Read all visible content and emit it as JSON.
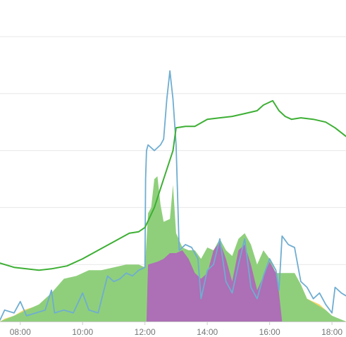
{
  "chart_data": {
    "type": "area",
    "title": "",
    "xlabel": "",
    "ylabel": "",
    "x_domain_hours": [
      7.35,
      18.45
    ],
    "y_domain": [
      0,
      100
    ],
    "grid": "horizontal",
    "legend": "none",
    "x_ticks": [
      {
        "hour": 8,
        "label": "08:00"
      },
      {
        "hour": 10,
        "label": "10:00"
      },
      {
        "hour": 12,
        "label": "12:00"
      },
      {
        "hour": 14,
        "label": "14:00"
      },
      {
        "hour": 16,
        "label": "16:00"
      },
      {
        "hour": 18,
        "label": "18:00"
      }
    ],
    "y_gridlines": [
      20,
      40,
      60,
      80,
      100
    ],
    "colors": {
      "yellow": "#f9d564",
      "green": "#8fcf7c",
      "purple": "#ad6fb5",
      "blue": "#6fadd1",
      "green_line": "#3daf34",
      "grid": "#e7e7e7",
      "axis": "#cccccc"
    },
    "series": [
      {
        "kind": "area",
        "color_key": "yellow",
        "points": [
          [
            7.35,
            0
          ],
          [
            7.5,
            1
          ],
          [
            7.8,
            2
          ],
          [
            8.1,
            4
          ],
          [
            8.4,
            5
          ],
          [
            8.8,
            6
          ],
          [
            9.2,
            7
          ],
          [
            9.6,
            8.5
          ],
          [
            10.0,
            11
          ],
          [
            10.4,
            13
          ],
          [
            10.8,
            15
          ],
          [
            11.2,
            16
          ],
          [
            11.5,
            17
          ],
          [
            11.8,
            18
          ],
          [
            12.0,
            17
          ],
          [
            12.1,
            0
          ],
          [
            13.0,
            0
          ],
          [
            13.1,
            16
          ],
          [
            13.4,
            17
          ],
          [
            13.6,
            14
          ],
          [
            13.8,
            7
          ],
          [
            13.9,
            2
          ],
          [
            14.0,
            8
          ],
          [
            14.2,
            4
          ],
          [
            14.4,
            3
          ],
          [
            14.6,
            7
          ],
          [
            14.8,
            3
          ],
          [
            15.0,
            6
          ],
          [
            15.2,
            5
          ],
          [
            15.4,
            13
          ],
          [
            15.6,
            6
          ],
          [
            15.8,
            10
          ],
          [
            16.0,
            9
          ],
          [
            16.2,
            4
          ],
          [
            16.4,
            12
          ],
          [
            16.6,
            15
          ],
          [
            16.8,
            17
          ],
          [
            17.0,
            13
          ],
          [
            17.2,
            8
          ],
          [
            17.4,
            7
          ],
          [
            17.6,
            6
          ],
          [
            17.8,
            4
          ],
          [
            18.0,
            2
          ],
          [
            18.3,
            0.5
          ],
          [
            18.45,
            0
          ]
        ]
      },
      {
        "kind": "area",
        "color_key": "green",
        "points": [
          [
            7.35,
            0
          ],
          [
            7.8,
            2
          ],
          [
            8.2,
            4
          ],
          [
            8.6,
            6
          ],
          [
            9.0,
            10
          ],
          [
            9.4,
            15
          ],
          [
            9.8,
            16
          ],
          [
            10.2,
            18
          ],
          [
            10.6,
            18
          ],
          [
            11.0,
            19
          ],
          [
            11.4,
            20
          ],
          [
            11.8,
            20
          ],
          [
            12.0,
            19
          ],
          [
            12.1,
            38
          ],
          [
            12.2,
            40
          ],
          [
            12.3,
            50
          ],
          [
            12.4,
            51
          ],
          [
            12.5,
            41
          ],
          [
            12.6,
            35
          ],
          [
            12.8,
            36
          ],
          [
            12.9,
            48
          ],
          [
            13.0,
            31
          ],
          [
            13.2,
            26
          ],
          [
            13.4,
            25
          ],
          [
            13.6,
            25
          ],
          [
            13.8,
            22
          ],
          [
            14.0,
            26
          ],
          [
            14.2,
            25
          ],
          [
            14.4,
            29
          ],
          [
            14.6,
            25
          ],
          [
            14.8,
            23
          ],
          [
            15.0,
            29
          ],
          [
            15.2,
            31
          ],
          [
            15.4,
            27
          ],
          [
            15.6,
            20
          ],
          [
            15.8,
            25
          ],
          [
            16.0,
            22
          ],
          [
            16.2,
            17
          ],
          [
            16.4,
            17
          ],
          [
            16.6,
            17
          ],
          [
            16.8,
            17
          ],
          [
            17.0,
            13
          ],
          [
            17.2,
            8
          ],
          [
            17.5,
            6
          ],
          [
            17.8,
            4
          ],
          [
            18.0,
            2
          ],
          [
            18.45,
            0
          ]
        ]
      },
      {
        "kind": "area",
        "color_key": "purple",
        "points": [
          [
            12.05,
            0
          ],
          [
            12.1,
            20
          ],
          [
            12.4,
            21
          ],
          [
            12.6,
            22
          ],
          [
            12.8,
            24
          ],
          [
            13.0,
            24
          ],
          [
            13.2,
            25
          ],
          [
            13.4,
            22
          ],
          [
            13.6,
            17
          ],
          [
            13.8,
            15
          ],
          [
            14.0,
            17
          ],
          [
            14.2,
            25
          ],
          [
            14.4,
            28
          ],
          [
            14.6,
            22
          ],
          [
            14.8,
            14
          ],
          [
            15.0,
            25
          ],
          [
            15.2,
            27
          ],
          [
            15.4,
            20
          ],
          [
            15.6,
            11
          ],
          [
            15.8,
            16
          ],
          [
            16.0,
            21
          ],
          [
            16.2,
            17
          ],
          [
            16.3,
            10
          ],
          [
            16.4,
            0
          ]
        ]
      },
      {
        "kind": "line",
        "color_key": "blue",
        "points": [
          [
            7.35,
            0.5
          ],
          [
            7.5,
            4
          ],
          [
            7.8,
            3
          ],
          [
            8.0,
            7
          ],
          [
            8.2,
            2
          ],
          [
            8.5,
            3
          ],
          [
            8.8,
            4
          ],
          [
            9.0,
            11
          ],
          [
            9.1,
            3
          ],
          [
            9.4,
            4
          ],
          [
            9.7,
            3
          ],
          [
            10.0,
            10
          ],
          [
            10.2,
            4
          ],
          [
            10.5,
            3
          ],
          [
            10.8,
            16
          ],
          [
            11.0,
            14
          ],
          [
            11.2,
            15
          ],
          [
            11.4,
            17
          ],
          [
            11.6,
            16
          ],
          [
            11.8,
            18
          ],
          [
            12.0,
            19
          ],
          [
            12.02,
            50
          ],
          [
            12.05,
            60
          ],
          [
            12.1,
            62
          ],
          [
            12.3,
            60
          ],
          [
            12.5,
            62
          ],
          [
            12.6,
            64
          ],
          [
            12.7,
            78
          ],
          [
            12.8,
            88
          ],
          [
            12.9,
            78
          ],
          [
            13.0,
            62
          ],
          [
            13.1,
            25
          ],
          [
            13.3,
            27
          ],
          [
            13.5,
            26
          ],
          [
            13.7,
            22
          ],
          [
            13.8,
            8
          ],
          [
            14.0,
            18
          ],
          [
            14.2,
            20
          ],
          [
            14.4,
            29
          ],
          [
            14.6,
            14
          ],
          [
            14.8,
            10
          ],
          [
            15.0,
            20
          ],
          [
            15.2,
            29
          ],
          [
            15.4,
            12
          ],
          [
            15.6,
            8
          ],
          [
            15.8,
            16
          ],
          [
            16.0,
            22
          ],
          [
            16.2,
            18
          ],
          [
            16.3,
            11
          ],
          [
            16.4,
            30
          ],
          [
            16.6,
            27
          ],
          [
            16.8,
            26
          ],
          [
            16.9,
            20
          ],
          [
            17.0,
            14
          ],
          [
            17.2,
            12
          ],
          [
            17.4,
            8
          ],
          [
            17.6,
            10
          ],
          [
            17.8,
            6
          ],
          [
            18.0,
            3
          ],
          [
            18.1,
            12
          ],
          [
            18.3,
            10
          ],
          [
            18.45,
            9
          ]
        ]
      },
      {
        "kind": "line",
        "color_key": "green_line",
        "points": [
          [
            7.35,
            20.5
          ],
          [
            7.8,
            19
          ],
          [
            8.2,
            18.5
          ],
          [
            8.6,
            18
          ],
          [
            9.0,
            18.5
          ],
          [
            9.5,
            19.5
          ],
          [
            10.0,
            22
          ],
          [
            10.5,
            25
          ],
          [
            11.0,
            28
          ],
          [
            11.5,
            31
          ],
          [
            11.8,
            31.5
          ],
          [
            12.0,
            33
          ],
          [
            12.3,
            40
          ],
          [
            12.6,
            50
          ],
          [
            12.9,
            60
          ],
          [
            13.0,
            68
          ],
          [
            13.3,
            68.5
          ],
          [
            13.6,
            68.5
          ],
          [
            14.0,
            71
          ],
          [
            14.4,
            71.5
          ],
          [
            14.8,
            72
          ],
          [
            15.2,
            73
          ],
          [
            15.6,
            74
          ],
          [
            15.8,
            76
          ],
          [
            16.0,
            77
          ],
          [
            16.1,
            77.5
          ],
          [
            16.3,
            74
          ],
          [
            16.5,
            72
          ],
          [
            16.7,
            71
          ],
          [
            17.0,
            71.5
          ],
          [
            17.4,
            71
          ],
          [
            17.8,
            70
          ],
          [
            18.1,
            68
          ],
          [
            18.45,
            65
          ]
        ]
      }
    ]
  }
}
